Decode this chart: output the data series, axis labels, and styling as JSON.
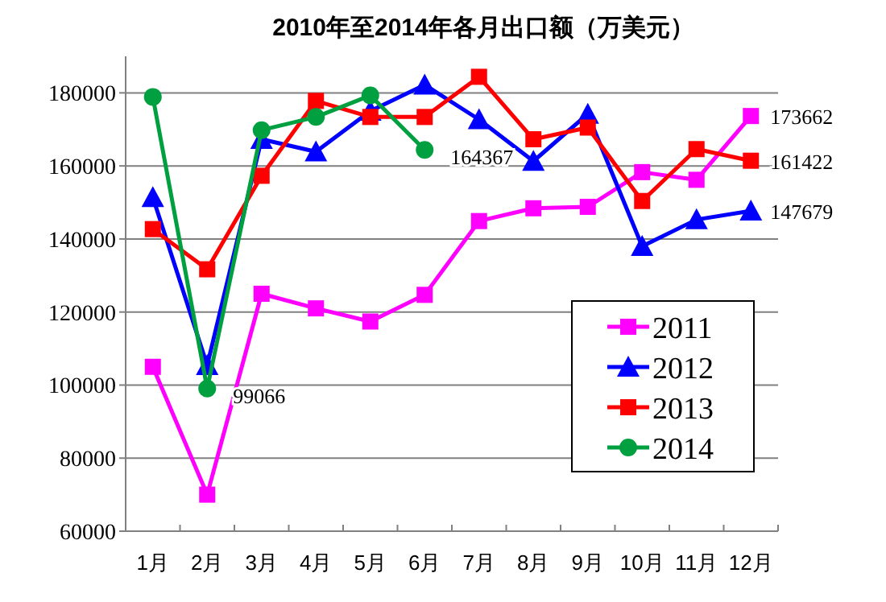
{
  "chart_data": {
    "type": "line",
    "title": "2010年至2014年各月出口额（万美元）",
    "categories": [
      "1月",
      "2月",
      "3月",
      "4月",
      "5月",
      "6月",
      "7月",
      "8月",
      "9月",
      "10月",
      "11月",
      "12月"
    ],
    "series": [
      {
        "name": "2011",
        "color": "#ff00ff",
        "marker": "square",
        "values": [
          105000,
          70000,
          125000,
          121000,
          117400,
          124700,
          144900,
          148400,
          148800,
          158300,
          156200,
          173662
        ],
        "value_labels": [
          null,
          null,
          null,
          null,
          null,
          null,
          null,
          null,
          null,
          null,
          null,
          "173662"
        ]
      },
      {
        "name": "2012",
        "color": "#0000ff",
        "marker": "triangle",
        "values": [
          151400,
          105400,
          167300,
          163900,
          175000,
          182200,
          172700,
          161300,
          174200,
          138000,
          145300,
          147679
        ],
        "value_labels": [
          null,
          null,
          null,
          null,
          null,
          null,
          null,
          null,
          null,
          null,
          null,
          "147679"
        ]
      },
      {
        "name": "2013",
        "color": "#ff0000",
        "marker": "square",
        "values": [
          142700,
          131700,
          157300,
          177800,
          173400,
          173400,
          184400,
          167300,
          170500,
          150400,
          164600,
          161422
        ],
        "value_labels": [
          null,
          null,
          null,
          null,
          null,
          null,
          null,
          null,
          null,
          null,
          null,
          "161422"
        ]
      },
      {
        "name": "2014",
        "color": "#00a040",
        "marker": "circle",
        "values": [
          178900,
          99066,
          169800,
          173400,
          179300,
          164367,
          null,
          null,
          null,
          null,
          null,
          null
        ],
        "value_labels": [
          null,
          "99066",
          null,
          null,
          null,
          "164367",
          null,
          null,
          null,
          null,
          null,
          null
        ]
      }
    ],
    "ylim": [
      60000,
      190000
    ],
    "yticks": [
      60000,
      80000,
      100000,
      120000,
      140000,
      160000,
      180000
    ],
    "grid": "y",
    "legend": "bottom right"
  }
}
